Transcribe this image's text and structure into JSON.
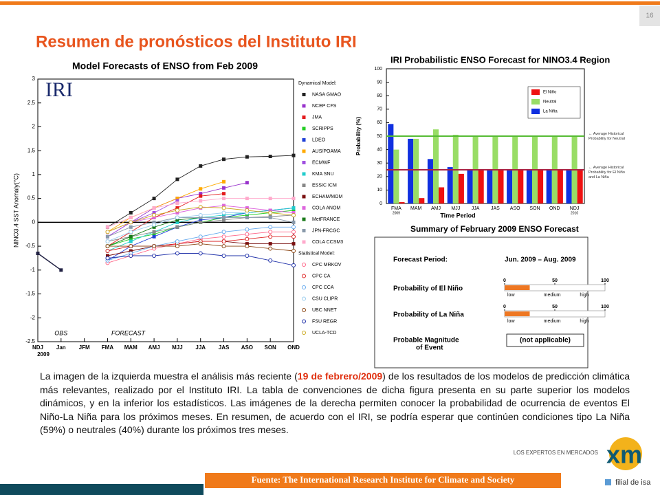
{
  "slide": {
    "page_number": "16",
    "title": "Resumen de pronósticos del Instituto IRI"
  },
  "chart_data": [
    {
      "type": "line",
      "title": "Model Forecasts of ENSO from Feb 2009",
      "y_label": "NINO3.4 SST Anomaly(°C)",
      "categories": [
        "NDJ",
        "Jan",
        "JFM",
        "FMA",
        "MAM",
        "AMJ",
        "MJJ",
        "JJA",
        "JAS",
        "ASO",
        "SON",
        "OND"
      ],
      "ylim": [
        -2.5,
        3
      ],
      "yticks": [
        -2.5,
        -2,
        -1.5,
        -1,
        -0.5,
        0,
        0.5,
        1,
        1.5,
        2,
        2.5,
        3
      ],
      "annotations": {
        "logo": "IRI",
        "forecast": "FORECAST",
        "year": "2009"
      },
      "legend_headings": [
        "Dynamical Model:",
        "Statistical Model:"
      ],
      "observed": {
        "name": "OBS",
        "color": "#222244",
        "values": [
          -0.65,
          -1.0,
          null,
          null,
          null,
          null,
          null,
          null,
          null,
          null,
          null,
          null
        ]
      },
      "series": [
        {
          "name": "NASA GMAO",
          "color": "#222222",
          "marker": "filled",
          "values": [
            null,
            null,
            null,
            -0.1,
            0.2,
            0.5,
            0.9,
            1.18,
            1.32,
            1.37,
            1.38,
            1.4
          ]
        },
        {
          "name": "NCEP CFS",
          "color": "#9933cc",
          "marker": "filled",
          "values": [
            null,
            null,
            null,
            -0.3,
            0.0,
            0.3,
            0.5,
            0.6,
            0.72,
            0.83,
            null,
            null
          ]
        },
        {
          "name": "JMA",
          "color": "#e31a1c",
          "marker": "filled",
          "values": [
            null,
            null,
            null,
            -0.5,
            -0.2,
            0.1,
            0.3,
            0.55,
            0.6,
            null,
            null,
            null
          ]
        },
        {
          "name": "SCRIPPS",
          "color": "#22cc22",
          "marker": "filled",
          "values": [
            null,
            null,
            null,
            -0.5,
            -0.35,
            -0.25,
            -0.1,
            0.0,
            0.1,
            0.15,
            0.2,
            0.25
          ]
        },
        {
          "name": "LDEO",
          "color": "#1f3fd6",
          "marker": "filled",
          "values": [
            null,
            null,
            null,
            -0.8,
            -0.5,
            -0.3,
            -0.1,
            0.05,
            0.1,
            0.2,
            0.25,
            0.3
          ]
        },
        {
          "name": "AUS/POAMA",
          "color": "#ffaa00",
          "marker": "filled",
          "values": [
            null,
            null,
            null,
            -0.2,
            0.1,
            0.3,
            0.5,
            0.7,
            0.85,
            null,
            null,
            null
          ]
        },
        {
          "name": "ECMWF",
          "color": "#a050e0",
          "marker": "filled",
          "values": [
            null,
            null,
            null,
            -0.3,
            0.0,
            0.2,
            0.45,
            null,
            null,
            null,
            null,
            null
          ]
        },
        {
          "name": "KMA SNU",
          "color": "#22cccc",
          "marker": "filled",
          "values": [
            null,
            null,
            null,
            -0.6,
            -0.4,
            -0.2,
            0.0,
            0.1,
            0.15,
            0.2,
            0.25,
            0.3
          ]
        },
        {
          "name": "ESSIC ICM",
          "color": "#888888",
          "marker": "filled",
          "values": [
            null,
            null,
            null,
            -0.4,
            -0.3,
            -0.2,
            -0.1,
            0.0,
            0.05,
            0.1,
            0.12,
            0.15
          ]
        },
        {
          "name": "ECHAM/MOM",
          "color": "#7a1010",
          "marker": "filled",
          "values": [
            null,
            null,
            null,
            -0.7,
            -0.6,
            -0.5,
            -0.45,
            -0.4,
            -0.4,
            -0.45,
            -0.45,
            -0.45
          ]
        },
        {
          "name": "COLA ANOM",
          "color": "#dd66dd",
          "marker": "filled",
          "values": [
            null,
            null,
            null,
            -0.2,
            0.0,
            0.1,
            0.2,
            0.3,
            0.35,
            0.3,
            0.25,
            0.2
          ]
        },
        {
          "name": "MetFRANCE",
          "color": "#1a7a1a",
          "marker": "filled",
          "values": [
            null,
            null,
            null,
            -0.5,
            -0.3,
            -0.1,
            0.05,
            0.1,
            null,
            null,
            null,
            null
          ]
        },
        {
          "name": "JPN-FRCGC",
          "color": "#8899aa",
          "marker": "filled",
          "values": [
            null,
            null,
            null,
            -0.3,
            -0.1,
            0.0,
            0.1,
            0.1,
            0.1,
            0.1,
            0.1,
            0.0
          ]
        },
        {
          "name": "COLA CCSM3",
          "color": "#ffaacc",
          "marker": "filled",
          "values": [
            null,
            null,
            null,
            -0.1,
            0.1,
            0.3,
            0.4,
            0.45,
            0.5,
            0.5,
            0.5,
            0.5
          ]
        },
        {
          "name": "CPC MRKOV",
          "color": "#ff6688",
          "marker": "open",
          "values": [
            null,
            null,
            null,
            -0.85,
            -0.7,
            -0.55,
            -0.45,
            -0.35,
            -0.3,
            -0.25,
            -0.2,
            -0.2
          ]
        },
        {
          "name": "CPC CA",
          "color": "#dd2222",
          "marker": "open",
          "values": [
            null,
            null,
            null,
            -0.6,
            -0.5,
            -0.5,
            -0.45,
            -0.4,
            -0.4,
            -0.35,
            -0.3,
            -0.3
          ]
        },
        {
          "name": "CPC CCA",
          "color": "#66aaee",
          "marker": "open",
          "values": [
            null,
            null,
            null,
            -0.8,
            -0.65,
            -0.5,
            -0.4,
            -0.3,
            -0.2,
            -0.15,
            -0.1,
            -0.1
          ]
        },
        {
          "name": "CSU CLIPR",
          "color": "#99ccee",
          "marker": "open",
          "values": [
            null,
            null,
            null,
            -0.4,
            -0.2,
            -0.05,
            0.1,
            0.15,
            0.2,
            0.2,
            null,
            null
          ]
        },
        {
          "name": "UBC NNET",
          "color": "#8b4513",
          "marker": "open",
          "values": [
            null,
            null,
            null,
            -0.5,
            -0.5,
            -0.5,
            -0.5,
            -0.45,
            -0.5,
            -0.5,
            -0.55,
            -0.6
          ]
        },
        {
          "name": "FSU REGR",
          "color": "#2233aa",
          "marker": "open",
          "values": [
            null,
            null,
            null,
            -0.75,
            -0.7,
            -0.7,
            -0.65,
            -0.65,
            -0.7,
            -0.7,
            -0.8,
            -0.9
          ]
        },
        {
          "name": "UCLA-TCD",
          "color": "#ccaa22",
          "marker": "open",
          "values": [
            null,
            null,
            null,
            -0.2,
            0.0,
            0.15,
            0.25,
            0.32,
            0.3,
            0.25,
            0.2,
            0.15
          ]
        }
      ]
    },
    {
      "type": "bar",
      "title": "IRI Probabilistic ENSO Forecast for NINO3.4 Region",
      "y_label": "Probability (%)",
      "x_label": "Time Period",
      "categories": [
        "FMA",
        "MAM",
        "AMJ",
        "MJJ",
        "JJA",
        "JAS",
        "ASO",
        "SON",
        "OND",
        "NDJ"
      ],
      "annotations": {
        "start_year": "2009",
        "end_year": "2010"
      },
      "ylim": [
        0,
        100
      ],
      "yticks": [
        0,
        10,
        20,
        30,
        40,
        50,
        60,
        70,
        80,
        90,
        100
      ],
      "series": [
        {
          "name": "La Niña",
          "color": "#1030e0",
          "values": [
            59,
            48,
            33,
            27,
            25,
            25,
            25,
            25,
            25,
            25
          ]
        },
        {
          "name": "Neutral",
          "color": "#99dd66",
          "values": [
            40,
            48,
            55,
            51,
            50,
            50,
            50,
            50,
            50,
            50
          ]
        },
        {
          "name": "El Niño",
          "color": "#ee1111",
          "values": [
            1,
            4,
            12,
            22,
            25,
            25,
            25,
            25,
            25,
            25
          ]
        }
      ],
      "legend_order": [
        "El Niño",
        "Neutral",
        "La Niña"
      ],
      "reference_lines": [
        {
          "value": 50,
          "color": "#55bb33",
          "label": "← Average Historical Probability for Neutral"
        },
        {
          "value": 25,
          "color": "#aa2244",
          "label": "← Average Historical Probability for El Niño and La Niña"
        }
      ]
    }
  ],
  "summary": {
    "title": "Summary of February 2009 ENSO Forecast",
    "scale_ticks": [
      0,
      50,
      100
    ],
    "scale_labels": [
      "low",
      "medium",
      "high"
    ],
    "bar_color": "#ee7722",
    "rows": [
      {
        "label": [
          "Forecast Period:"
        ],
        "text": "Jun. 2009 – Aug. 2009"
      },
      {
        "label": [
          "Probability of El Niño"
        ],
        "value": 25
      },
      {
        "label": [
          "Probability of La Niña"
        ],
        "value": 25
      },
      {
        "label": [
          "Probable Magnitude",
          "of Event"
        ],
        "text": "(not applicable)"
      }
    ]
  },
  "paragraph": {
    "before": "La imagen de la izquierda muestra el análisis más reciente (",
    "highlight": "19 de febrero/2009",
    "after": ") de los resultados de los modelos de predicción climática más relevantes, realizado por el Instituto IRI.  La tabla de convenciones de dicha figura presenta en su parte superior los modelos dinámicos, y en la inferior los estadísticos.  Las imágenes de la derecha permiten conocer la probabilidad de ocurrencia de eventos El Niño-La Niña para los próximos meses.  En resumen, de acuerdo con el IRI, se podría esperar que continúen condiciones tipo La Niña (59%) o neutrales (40%) durante los próximos tres meses."
  },
  "footer": {
    "source": "Fuente:  The International Research Institute for Climate and Society",
    "tagline": "LOS EXPERTOS EN MERCADOS",
    "logo": "xm",
    "affiliate": "filial de isa"
  }
}
